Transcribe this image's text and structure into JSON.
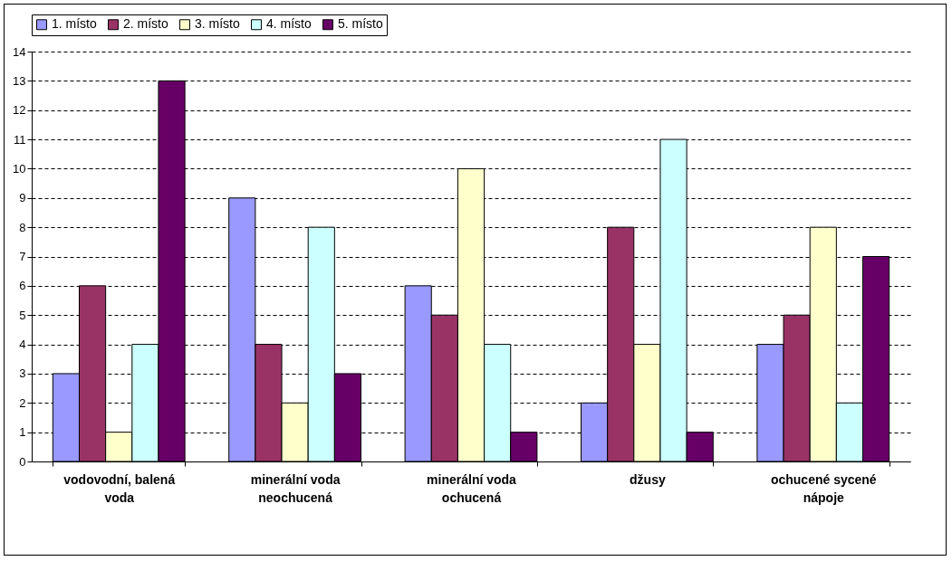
{
  "chart_data": {
    "type": "bar",
    "categories": [
      "vodovodní, balená voda",
      "minerální voda neochucená",
      "minerální voda ochucená",
      "džusy",
      "ochucené sycené nápoje"
    ],
    "series": [
      {
        "name": "1. místo",
        "color": "#9999ff",
        "values": [
          3,
          9,
          6,
          2,
          4
        ]
      },
      {
        "name": "2. místo",
        "color": "#993366",
        "values": [
          6,
          4,
          5,
          8,
          5
        ]
      },
      {
        "name": "3. místo",
        "color": "#ffffcc",
        "values": [
          1,
          2,
          10,
          4,
          8
        ]
      },
      {
        "name": "4. místo",
        "color": "#ccffff",
        "values": [
          4,
          8,
          4,
          11,
          2
        ]
      },
      {
        "name": "5. místo",
        "color": "#660066",
        "values": [
          13,
          3,
          1,
          1,
          7
        ]
      }
    ],
    "ylim": [
      0,
      14
    ],
    "yticks": [
      0,
      1,
      2,
      3,
      4,
      5,
      6,
      7,
      8,
      9,
      10,
      11,
      12,
      13,
      14
    ],
    "grid": "y",
    "legend": "top"
  }
}
